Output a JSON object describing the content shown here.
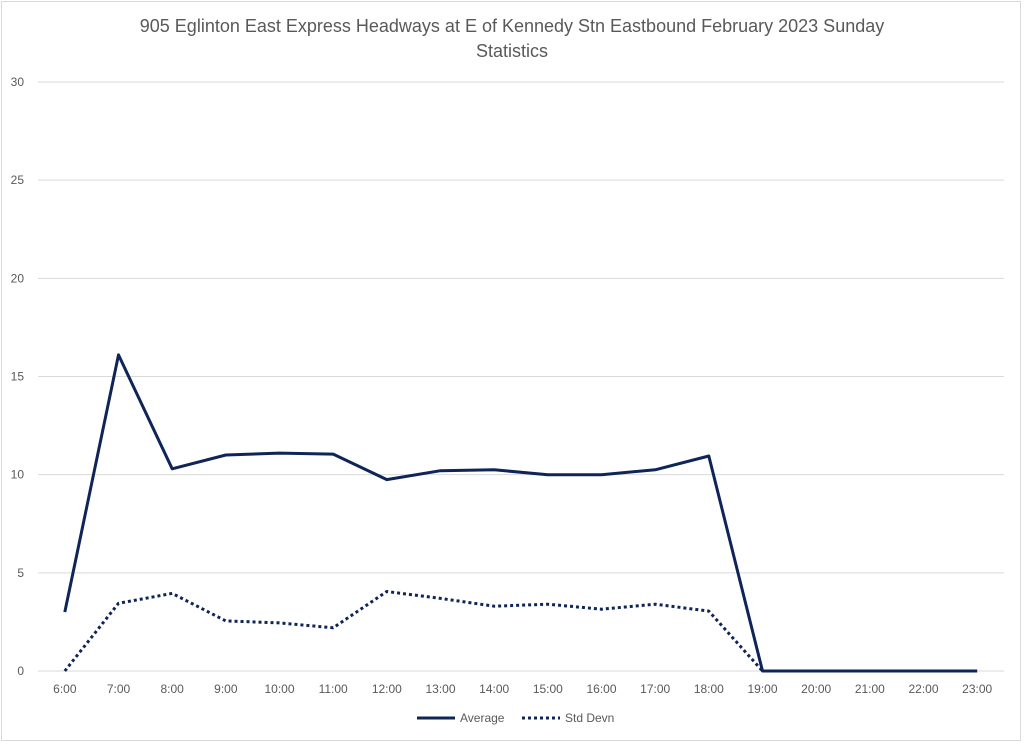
{
  "chart_data": {
    "type": "line",
    "title_line1": "905 Eglinton East Express Headways at E of Kennedy Stn Eastbound February 2023 Sunday",
    "title_line2": "Statistics",
    "categories": [
      "6:00",
      "7:00",
      "8:00",
      "9:00",
      "10:00",
      "11:00",
      "12:00",
      "13:00",
      "14:00",
      "15:00",
      "16:00",
      "17:00",
      "18:00",
      "19:00",
      "20:00",
      "21:00",
      "22:00",
      "23:00"
    ],
    "series": [
      {
        "name": "Average",
        "style": "solid",
        "color": "#0f2557",
        "values": [
          3.0,
          16.1,
          10.3,
          11.0,
          11.1,
          11.05,
          9.75,
          10.2,
          10.25,
          10.0,
          10.0,
          10.25,
          10.95,
          0,
          0,
          0,
          0,
          0
        ]
      },
      {
        "name": "Std Devn",
        "style": "dotted",
        "color": "#0f2557",
        "values": [
          0,
          3.45,
          3.95,
          2.55,
          2.45,
          2.2,
          4.05,
          3.7,
          3.3,
          3.4,
          3.15,
          3.4,
          3.05,
          0,
          null,
          null,
          null,
          null
        ]
      }
    ],
    "ylim": [
      0,
      30
    ],
    "yticks": [
      0,
      5,
      10,
      15,
      20,
      25,
      30
    ],
    "grid": true,
    "legend_position": "bottom"
  }
}
